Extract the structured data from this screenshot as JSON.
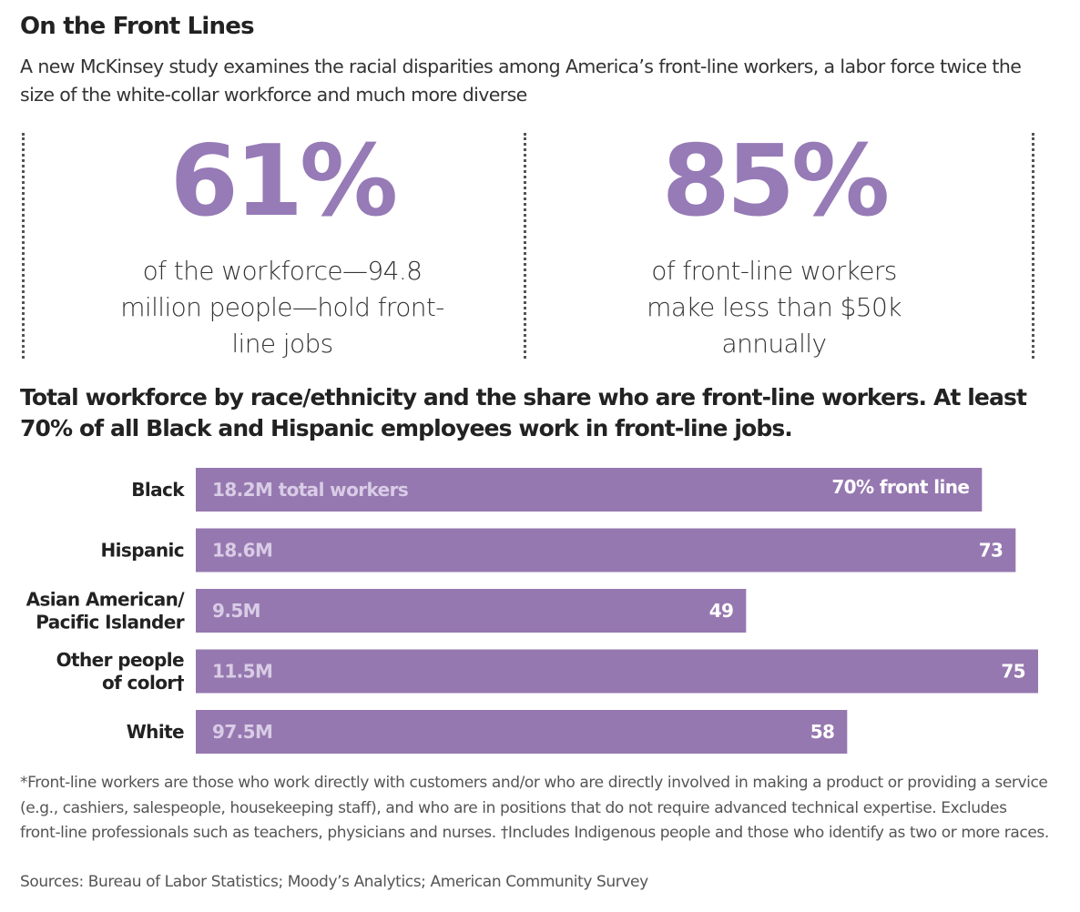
{
  "title": "On the Front Lines",
  "subtitle": "A new McKinsey study examines the racial disparities among America’s front-line workers, a labor force twice the size of the white-collar workforce and much more diverse",
  "stats": [
    {
      "value": "61%",
      "caption": "of the workforce—94.8 million people—hold front-line jobs"
    },
    {
      "value": "85%",
      "caption": "of front-line workers make less than $50k annually"
    }
  ],
  "chart_heading": "Total workforce by race/ethnicity and the share who are front-line workers. At least 70% of all Black and Hispanic employees work in front-line jobs.",
  "colors": {
    "accent": "#967bb6",
    "bar": "#9678b0",
    "bar_total_text": "#d9cce6",
    "bar_share_text": "#ffffff"
  },
  "chart_data": {
    "type": "bar",
    "orientation": "horizontal",
    "categories": [
      "Black",
      "Hispanic",
      "Asian American/ Pacific Islander",
      "Other people of color†",
      "White"
    ],
    "category_lines": [
      [
        "Black"
      ],
      [
        "Hispanic"
      ],
      [
        "Asian American/",
        "Pacific Islander"
      ],
      [
        "Other people",
        "of color†"
      ],
      [
        "White"
      ]
    ],
    "total_labels": [
      "18.2M total workers",
      "18.6M",
      "9.5M",
      "11.5M",
      "97.5M"
    ],
    "total_workers_millions": [
      18.2,
      18.6,
      9.5,
      11.5,
      97.5
    ],
    "share_labels": [
      "70% front line",
      "73",
      "49",
      "75",
      "58"
    ],
    "values": [
      70,
      73,
      49,
      75,
      58
    ],
    "value_unit": "% front line",
    "xlim": [
      0,
      75
    ],
    "grid": false,
    "legend": "none"
  },
  "footnote": "*Front-line workers are those who work directly with customers and/or who are directly involved in making a product or providing a service (e.g., cashiers, salespeople, housekeeping staff), and who are in positions that do not require advanced technical expertise. Excludes front-line professionals such as teachers, physicians and nurses.   †Includes Indigenous people and those who identify as two or more races.",
  "sources": "Sources: Bureau of Labor Statistics; Moody’s Analytics; American Community Survey"
}
